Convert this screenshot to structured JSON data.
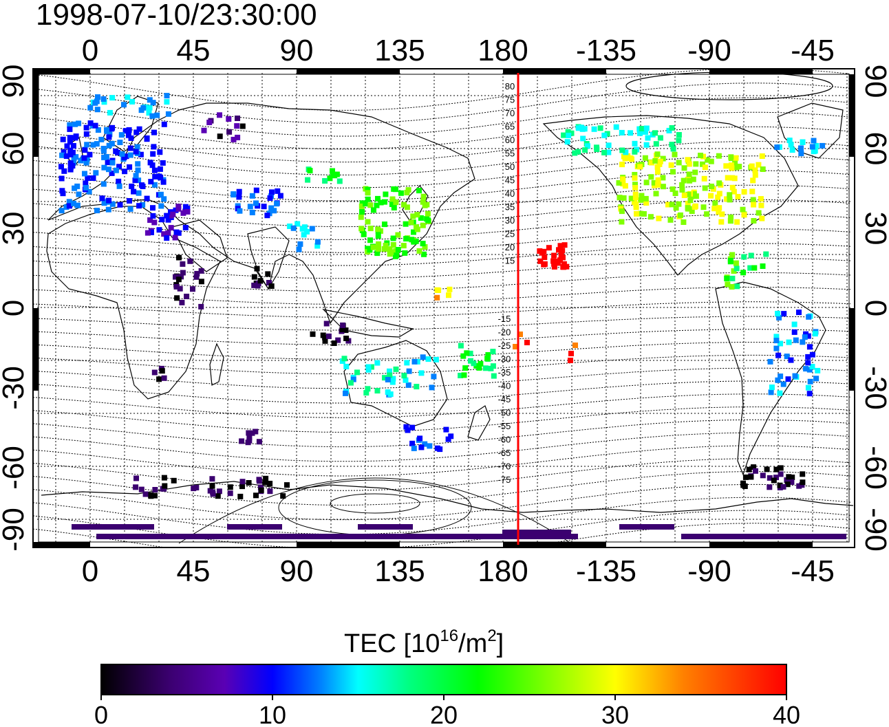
{
  "timestamp": "1998-07-10/23:30:00",
  "lon_ticks": [
    "0",
    "45",
    "90",
    "135",
    "180",
    "-135",
    "-90",
    "-45"
  ],
  "lat_ticks_left": [
    "90",
    "60",
    "30",
    "0",
    "-30",
    "-60",
    "-90"
  ],
  "lat_ticks_right": [
    "90",
    "60",
    "30",
    "0",
    "-30",
    "-60",
    "-90"
  ],
  "contour_labels_north": [
    "80",
    "75",
    "70",
    "65",
    "60",
    "55",
    "50",
    "45",
    "40",
    "35",
    "30",
    "25",
    "20",
    "15"
  ],
  "contour_labels_south": [
    "-15",
    "-20",
    "-25",
    "-30",
    "-35",
    "-40",
    "-45",
    "-50",
    "-55",
    "-60",
    "-65",
    "-70",
    "-75"
  ],
  "colorbar": {
    "title_prefix": "TEC  [10",
    "title_exp1": "16",
    "title_mid": "/m",
    "title_exp2": "2",
    "title_suffix": "]",
    "ticks": [
      "0",
      "10",
      "20",
      "30",
      "40"
    ],
    "range": [
      0,
      40
    ],
    "colors": [
      "#000000",
      "#3b0070",
      "#5a00b4",
      "#0000ff",
      "#0080ff",
      "#00ffff",
      "#00ff80",
      "#00ff00",
      "#80ff00",
      "#ffff00",
      "#ff8000",
      "#ff0000"
    ]
  },
  "colors": {
    "terminator_line": "#ff0000",
    "coastline": "#000000",
    "grid": "#000000"
  }
}
